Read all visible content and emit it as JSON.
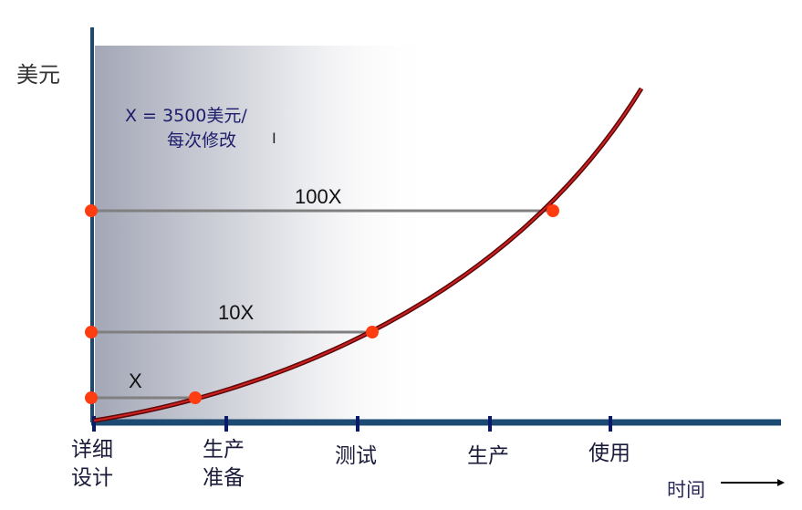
{
  "y_axis_label": "美元",
  "note": {
    "line1": "X = 3500美元/",
    "line2": "每次修改"
  },
  "levels": [
    {
      "label": "X"
    },
    {
      "label": "10X"
    },
    {
      "label": "100X"
    }
  ],
  "phases": [
    {
      "line1": "详细",
      "line2": "设计"
    },
    {
      "line1": "生产",
      "line2": "准备"
    },
    {
      "line1": "测试",
      "line2": ""
    },
    {
      "line1": "生产",
      "line2": ""
    },
    {
      "line1": "使用",
      "line2": ""
    }
  ],
  "x_axis_label": "时间",
  "colors": {
    "axis": "#1d4a72",
    "tick": "#0a1a6a",
    "curve": "#a01010",
    "marker": "#ff3d10",
    "level_line": "#808080"
  }
}
